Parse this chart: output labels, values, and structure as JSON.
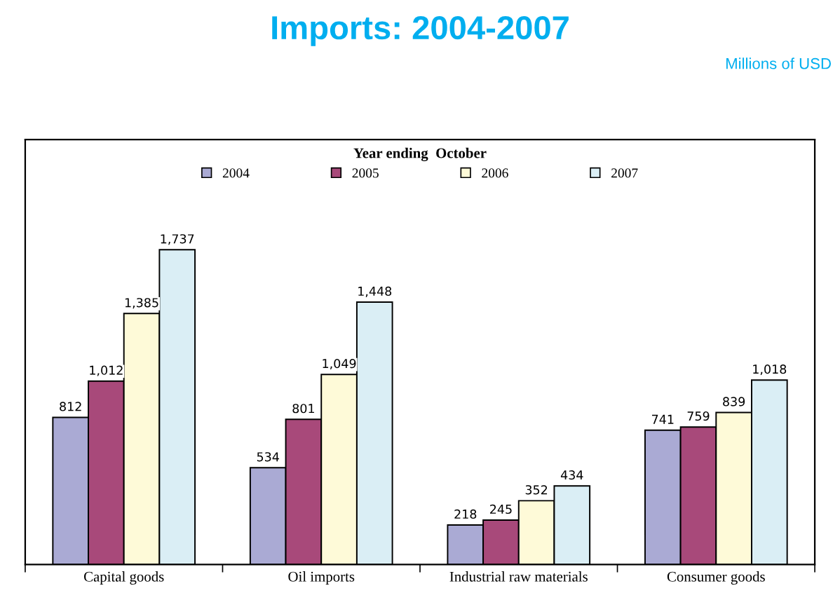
{
  "chart_data": {
    "type": "bar",
    "title": "Imports: 2004-2007",
    "subtitle": "Millions of USD",
    "legend_title": "Year ending  October",
    "categories": [
      "Capital goods",
      "Oil imports",
      "Industrial raw materials",
      "Consumer goods"
    ],
    "series": [
      {
        "name": "2004",
        "color": "#aaaad4",
        "values": [
          812,
          534,
          218,
          741
        ],
        "value_labels": [
          "812",
          "534",
          "218",
          "741"
        ]
      },
      {
        "name": "2005",
        "color": "#a8497a",
        "values": [
          1012,
          801,
          245,
          759
        ],
        "value_labels": [
          "1,012",
          "801",
          "245",
          "759"
        ]
      },
      {
        "name": "2006",
        "color": "#fefad8",
        "values": [
          1385,
          1049,
          352,
          839
        ],
        "value_labels": [
          "1,385",
          "1,049",
          "352",
          "839"
        ]
      },
      {
        "name": "2007",
        "color": "#daeef5",
        "values": [
          1737,
          1448,
          434,
          1018
        ],
        "value_labels": [
          "1,737",
          "1,448",
          "434",
          "1,018"
        ]
      }
    ],
    "legend": "top",
    "grid": false
  }
}
